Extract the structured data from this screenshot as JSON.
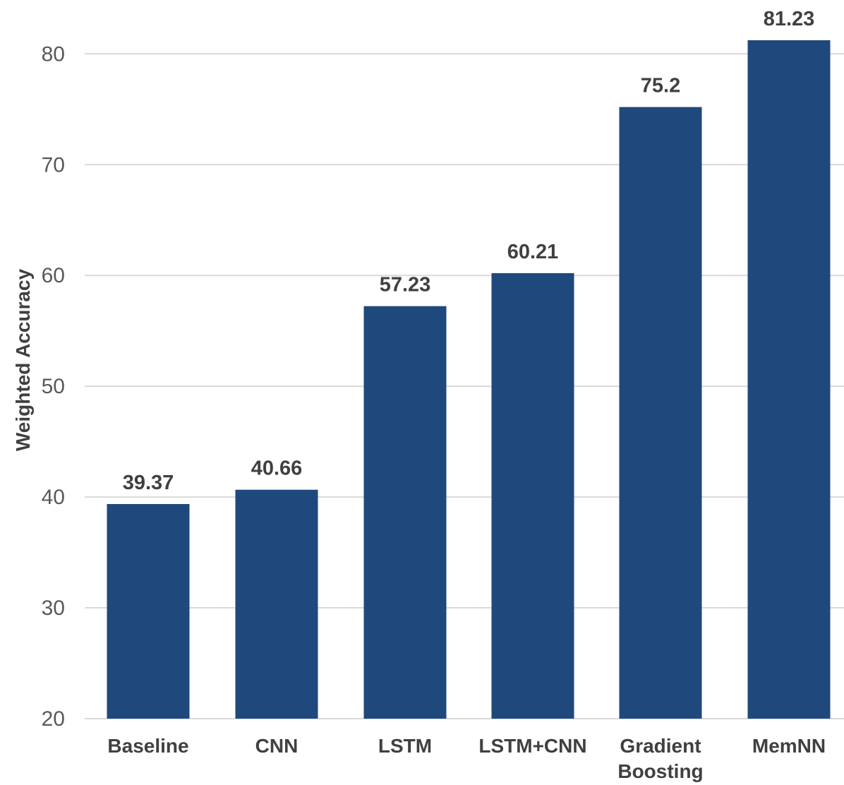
{
  "chart_data": {
    "type": "bar",
    "categories": [
      "Baseline",
      "CNN",
      "LSTM",
      "LSTM+CNN",
      "Gradient Boosting",
      "MemNN"
    ],
    "category_lines": [
      [
        "Baseline"
      ],
      [
        "CNN"
      ],
      [
        "LSTM"
      ],
      [
        "LSTM+CNN"
      ],
      [
        "Gradient",
        "Boosting"
      ],
      [
        "MemNN"
      ]
    ],
    "values": [
      39.37,
      40.66,
      57.23,
      60.21,
      75.2,
      81.23
    ],
    "value_labels": [
      "39.37",
      "40.66",
      "57.23",
      "60.21",
      "75.2",
      "81.23"
    ],
    "title": "",
    "xlabel": "",
    "ylabel": "Weighted Accuracy",
    "ylim": [
      20,
      81.23
    ],
    "yticks": [
      20,
      30,
      40,
      50,
      60,
      70,
      80
    ],
    "grid": true,
    "legend": "none",
    "bar_color": "#1f497d"
  }
}
